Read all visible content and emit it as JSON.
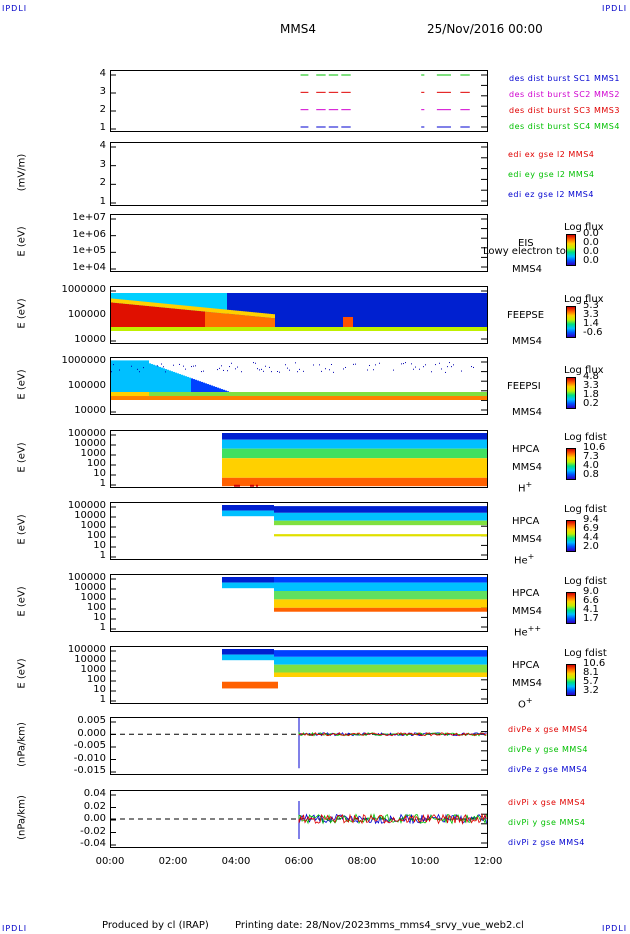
{
  "header": {
    "corner_tl": "IPDLI",
    "corner_tr": "IPDLI",
    "corner_bl": "IPDLI",
    "corner_br": "IPDLI",
    "spacecraft": "MMS4",
    "datetime": "25/Nov/2016 00:00"
  },
  "footer": {
    "produced": "Produced by cl (IRAP)",
    "printing": "Printing date: 28/Nov/2023",
    "file": "mms_mms4_srvy_vue_web2.cl"
  },
  "x_axis": {
    "ticks": [
      "00:00",
      "02:00",
      "04:00",
      "06:00",
      "08:00",
      "10:00",
      "12:00"
    ]
  },
  "colors": {
    "red": "#e00000",
    "green": "#00c000",
    "blue": "#0000d0",
    "magenta": "#d000d0"
  },
  "chart_data": [
    {
      "type": "line",
      "panel": "burst",
      "ylim": [
        0.6,
        4.4
      ],
      "yticks": [
        "4",
        "3",
        "2",
        "1"
      ],
      "legend": [
        "des dist burst SC1 MMS1",
        "des dist burst SC2 MMS2",
        "des dist burst SC3 MMS3",
        "des dist burst SC4 MMS4"
      ],
      "legend_colors": [
        "#0000d0",
        "#d000d0",
        "#e00000",
        "#00c000"
      ]
    },
    {
      "type": "line",
      "panel": "edi",
      "ylabel": "(mV/m)",
      "yticks": [
        "4",
        "3",
        "2",
        "1"
      ],
      "legend": [
        "edi ex gse l2 MMS4",
        "edi ey gse l2 MMS4",
        "edi ez gse l2 MMS4"
      ],
      "legend_colors": [
        "#e00000",
        "#00c000",
        "#0000d0"
      ]
    },
    {
      "type": "heatmap",
      "panel": "eis",
      "ylabel": "E (eV)",
      "yticks": [
        "1e+07",
        "1e+06",
        "1e+05",
        "1e+04"
      ],
      "instrument": "EIS",
      "overlay": "Lowy electron to",
      "sc": "MMS4",
      "cbar_title": "Log flux",
      "cbar_ticks": [
        "0.0",
        "0.0",
        "0.0",
        "0.0"
      ]
    },
    {
      "type": "heatmap",
      "panel": "feepse",
      "ylabel": "E (eV)",
      "yticks": [
        "1000000",
        "100000",
        "10000"
      ],
      "instrument": "FEEPSE",
      "sc": "MMS4",
      "cbar_title": "Log flux",
      "cbar_ticks": [
        "5.3",
        "3.3",
        "1.4",
        "-0.6"
      ]
    },
    {
      "type": "heatmap",
      "panel": "feepsi",
      "ylabel": "E (eV)",
      "yticks": [
        "1000000",
        "100000",
        "10000"
      ],
      "instrument": "FEEPSI",
      "sc": "MMS4",
      "cbar_title": "Log flux",
      "cbar_ticks": [
        "4.8",
        "3.3",
        "1.8",
        "0.2"
      ]
    },
    {
      "type": "heatmap",
      "panel": "hpca_h",
      "ylabel": "E (eV)",
      "yticks": [
        "100000",
        "10000",
        "1000",
        "100",
        "10",
        "1"
      ],
      "instrument": "HPCA",
      "sc": "MMS4",
      "species": "H",
      "species_sup": "+",
      "cbar_title": "Log fdist",
      "cbar_ticks": [
        "10.6",
        "7.3",
        "4.0",
        "0.8"
      ]
    },
    {
      "type": "heatmap",
      "panel": "hpca_he",
      "ylabel": "E (eV)",
      "yticks": [
        "100000",
        "10000",
        "1000",
        "100",
        "10",
        "1"
      ],
      "instrument": "HPCA",
      "sc": "MMS4",
      "species": "He",
      "species_sup": "+",
      "cbar_title": "Log fdist",
      "cbar_ticks": [
        "9.4",
        "6.9",
        "4.4",
        "2.0"
      ]
    },
    {
      "type": "heatmap",
      "panel": "hpca_hepp",
      "ylabel": "E (eV)",
      "yticks": [
        "100000",
        "10000",
        "1000",
        "100",
        "10",
        "1"
      ],
      "instrument": "HPCA",
      "sc": "MMS4",
      "species": "He",
      "species_sup": "++",
      "cbar_title": "Log fdist",
      "cbar_ticks": [
        "9.0",
        "6.6",
        "4.1",
        "1.7"
      ]
    },
    {
      "type": "heatmap",
      "panel": "hpca_o",
      "ylabel": "E (eV)",
      "yticks": [
        "100000",
        "10000",
        "1000",
        "100",
        "10",
        "1"
      ],
      "instrument": "HPCA",
      "sc": "MMS4",
      "species": "O",
      "species_sup": "+",
      "cbar_title": "Log fdist",
      "cbar_ticks": [
        "10.6",
        "8.1",
        "5.7",
        "3.2"
      ]
    },
    {
      "type": "line",
      "panel": "divpe",
      "ylabel": "(nPa/km)",
      "ylim": [
        -0.015,
        0.0075
      ],
      "yticks": [
        "0.005",
        "0.000",
        "-0.005",
        "-0.010",
        "-0.015"
      ],
      "legend": [
        "divPe x gse MMS4",
        "divPe y gse MMS4",
        "divPe z gse MMS4"
      ],
      "legend_colors": [
        "#e00000",
        "#00c000",
        "#0000d0"
      ]
    },
    {
      "type": "line",
      "panel": "divpi",
      "ylabel": "(nPa/km)",
      "ylim": [
        -0.05,
        0.05
      ],
      "yticks": [
        "0.04",
        "0.02",
        "0.00",
        "-0.02",
        "-0.04"
      ],
      "legend": [
        "divPi x gse MMS4",
        "divPi y gse MMS4",
        "divPi z gse MMS4"
      ],
      "legend_colors": [
        "#e00000",
        "#00c000",
        "#0000d0"
      ]
    }
  ]
}
